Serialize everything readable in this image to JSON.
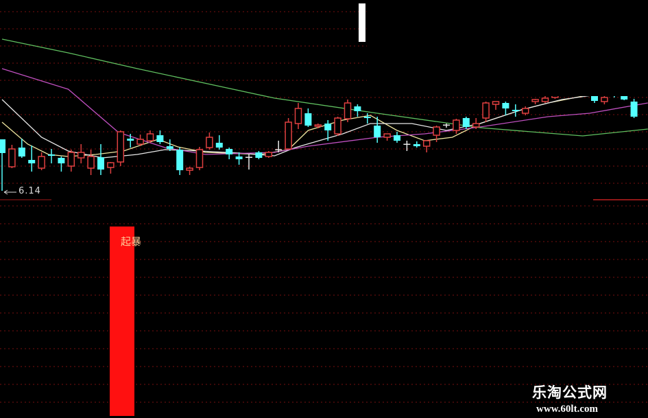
{
  "chart_data": {
    "type": "candlestick",
    "title": "",
    "colors": {
      "up": "#e04040",
      "down": "#54ffff",
      "flat": "#e8e8e8",
      "grid": "#7a1010",
      "signal_bar": "#ff1010"
    },
    "low_marker": {
      "label": "6.14",
      "value": 6.14
    },
    "candles": [
      [
        6.89,
        6.89,
        6.14,
        6.69
      ],
      [
        6.49,
        6.81,
        6.47,
        6.75
      ],
      [
        6.77,
        6.9,
        6.62,
        6.64
      ],
      [
        6.59,
        6.8,
        6.42,
        6.54
      ],
      [
        6.47,
        6.7,
        6.44,
        6.64
      ],
      [
        6.67,
        6.75,
        6.54,
        6.65
      ],
      [
        6.62,
        6.64,
        6.42,
        6.54
      ],
      [
        6.5,
        6.74,
        6.42,
        6.7
      ],
      [
        6.62,
        6.82,
        6.54,
        6.7
      ],
      [
        6.47,
        6.74,
        6.37,
        6.64
      ],
      [
        6.63,
        6.82,
        6.37,
        6.45
      ],
      [
        6.48,
        6.56,
        6.39,
        6.55
      ],
      [
        6.56,
        7.02,
        6.5,
        7.0
      ],
      [
        6.9,
        6.97,
        6.77,
        6.87
      ],
      [
        6.82,
        6.96,
        6.79,
        6.89
      ],
      [
        6.87,
        7.02,
        6.84,
        6.97
      ],
      [
        6.95,
        7.02,
        6.82,
        6.85
      ],
      [
        6.79,
        6.89,
        6.72,
        6.75
      ],
      [
        6.74,
        6.77,
        6.37,
        6.44
      ],
      [
        6.44,
        6.49,
        6.37,
        6.47
      ],
      [
        6.48,
        6.78,
        6.44,
        6.74
      ],
      [
        6.77,
        6.99,
        6.74,
        6.92
      ],
      [
        6.84,
        6.95,
        6.74,
        6.77
      ],
      [
        6.75,
        6.77,
        6.6,
        6.67
      ],
      [
        6.64,
        6.7,
        6.52,
        6.6
      ],
      [
        6.635,
        6.67,
        6.45,
        6.635
      ],
      [
        6.7,
        6.72,
        6.6,
        6.62
      ],
      [
        6.64,
        6.72,
        6.62,
        6.7
      ],
      [
        6.745,
        6.87,
        6.7,
        6.745
      ],
      [
        6.75,
        7.2,
        6.74,
        7.14
      ],
      [
        7.12,
        7.42,
        7.04,
        7.34
      ],
      [
        7.27,
        7.34,
        7.07,
        7.09
      ],
      [
        7.08,
        7.12,
        7.05,
        7.1
      ],
      [
        7.12,
        7.17,
        6.87,
        7.02
      ],
      [
        6.97,
        7.22,
        6.94,
        7.2
      ],
      [
        7.19,
        7.47,
        7.14,
        7.42
      ],
      [
        7.37,
        7.4,
        7.22,
        7.3
      ],
      [
        7.22,
        7.27,
        7.12,
        7.2
      ],
      [
        7.09,
        7.22,
        6.84,
        6.92
      ],
      [
        6.92,
        6.97,
        6.87,
        6.97
      ],
      [
        6.95,
        7.0,
        6.84,
        6.87
      ],
      [
        6.825,
        6.87,
        6.72,
        6.825
      ],
      [
        6.82,
        6.86,
        6.77,
        6.79
      ],
      [
        6.79,
        6.88,
        6.7,
        6.87
      ],
      [
        6.95,
        7.09,
        6.85,
        7.07
      ],
      [
        7.105,
        7.12,
        7.06,
        7.105
      ],
      [
        7.02,
        7.19,
        6.97,
        7.17
      ],
      [
        7.2,
        7.22,
        7.04,
        7.07
      ],
      [
        7.07,
        7.2,
        7.04,
        7.12
      ],
      [
        7.2,
        7.44,
        7.14,
        7.42
      ],
      [
        7.4,
        7.44,
        7.32,
        7.44
      ],
      [
        7.42,
        7.44,
        7.24,
        7.34
      ],
      [
        7.32,
        7.4,
        7.22,
        7.3
      ],
      [
        7.27,
        7.37,
        7.24,
        7.34
      ],
      [
        7.44,
        7.48,
        7.4,
        7.47
      ],
      [
        7.44,
        7.52,
        7.42,
        7.49
      ],
      [
        7.5,
        7.66,
        7.48,
        7.62
      ],
      [
        7.6,
        7.72,
        7.55,
        7.68
      ],
      [
        7.7,
        7.75,
        7.58,
        7.62
      ],
      [
        7.62,
        7.74,
        7.6,
        7.7
      ],
      [
        7.55,
        7.6,
        7.42,
        7.45
      ],
      [
        7.44,
        7.56,
        7.4,
        7.5
      ],
      [
        7.56,
        7.6,
        7.5,
        7.52
      ],
      [
        7.54,
        7.58,
        7.46,
        7.47
      ],
      [
        7.44,
        7.48,
        7.2,
        7.22
      ]
    ],
    "moving_averages": [
      {
        "color": "#f0e6a0",
        "points": [
          [
            0,
            7.14
          ],
          [
            2.6,
            6.82
          ],
          [
            4.7,
            6.67
          ],
          [
            6.7,
            6.64
          ],
          [
            9.5,
            6.67
          ],
          [
            12.3,
            6.72
          ],
          [
            15.8,
            6.89
          ],
          [
            17.8,
            6.78
          ],
          [
            20.6,
            6.7
          ],
          [
            26.2,
            6.67
          ],
          [
            29,
            6.74
          ],
          [
            31,
            7.02
          ],
          [
            34.5,
            7.17
          ],
          [
            37.3,
            7.24
          ],
          [
            40,
            7.02
          ],
          [
            42.8,
            6.87
          ],
          [
            45.6,
            6.92
          ],
          [
            48.4,
            7.12
          ],
          [
            52.6,
            7.32
          ],
          [
            55.3,
            7.42
          ],
          [
            58.8,
            7.52
          ]
        ]
      },
      {
        "color": "#e8e8e8",
        "points": [
          [
            0,
            7.47
          ],
          [
            4,
            6.92
          ],
          [
            6.7,
            6.72
          ],
          [
            10.2,
            6.62
          ],
          [
            13.7,
            6.67
          ],
          [
            16.5,
            6.74
          ],
          [
            20,
            6.72
          ],
          [
            24,
            6.69
          ],
          [
            27.6,
            6.65
          ],
          [
            29.7,
            6.77
          ],
          [
            34.5,
            6.97
          ],
          [
            37.3,
            7.12
          ],
          [
            41.5,
            7.12
          ],
          [
            45,
            7.02
          ],
          [
            48.4,
            7.12
          ],
          [
            52.6,
            7.32
          ],
          [
            56.7,
            7.47
          ],
          [
            60.2,
            7.54
          ]
        ]
      },
      {
        "color": "#c050c0",
        "points": [
          [
            0,
            7.92
          ],
          [
            6.7,
            7.62
          ],
          [
            11.8,
            6.99
          ],
          [
            16.5,
            6.77
          ],
          [
            20.6,
            6.67
          ],
          [
            27.6,
            6.7
          ],
          [
            31,
            6.79
          ],
          [
            38,
            6.92
          ],
          [
            42.8,
            6.97
          ],
          [
            48.4,
            7.07
          ],
          [
            55.3,
            7.22
          ],
          [
            59.5,
            7.27
          ],
          [
            65.4,
            7.42
          ]
        ]
      },
      {
        "color": "#60c060",
        "points": [
          [
            0,
            8.35
          ],
          [
            6.7,
            8.15
          ],
          [
            13.7,
            7.92
          ],
          [
            27.6,
            7.49
          ],
          [
            38,
            7.27
          ],
          [
            48.4,
            7.06
          ],
          [
            58.8,
            6.94
          ],
          [
            65.4,
            7.04
          ]
        ]
      }
    ],
    "signal": {
      "label": "起暴",
      "bar_index": 11
    }
  },
  "watermark": {
    "name": "乐淘公式网",
    "url": "www.60lt.com"
  }
}
